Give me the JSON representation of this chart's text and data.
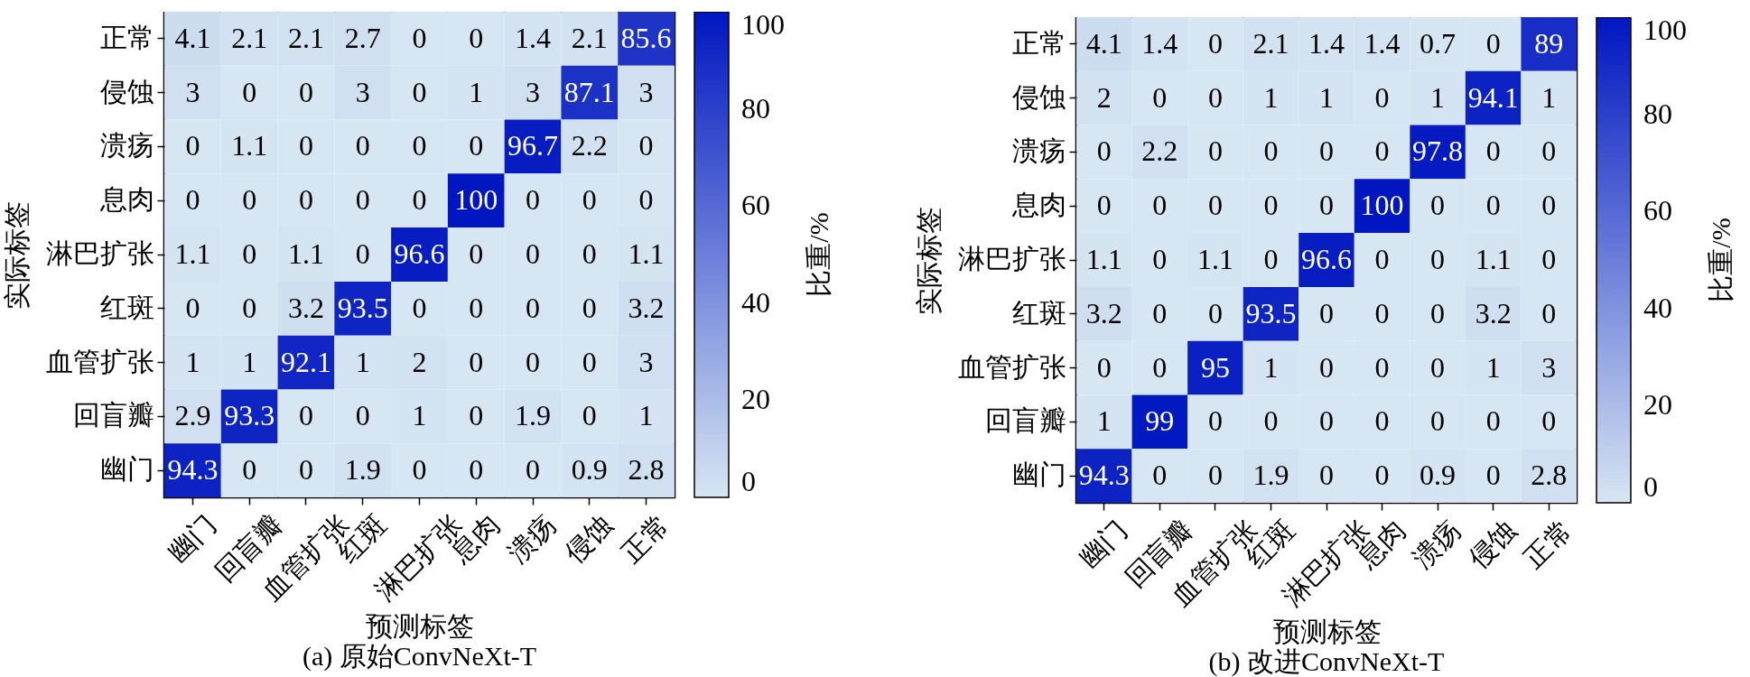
{
  "chart_data": [
    {
      "type": "heatmap",
      "title": "(a) 原始ConvNeXt-T",
      "xlabel": "预测标签",
      "ylabel": "实际标签",
      "clabel": "比重/%",
      "categories": [
        "幽门",
        "回盲瓣",
        "血管扩张",
        "红斑",
        "淋巴扩张",
        "息肉",
        "溃疡",
        "侵蚀",
        "正常"
      ],
      "y_categories": [
        "正常",
        "侵蚀",
        "溃疡",
        "息肉",
        "淋巴扩张",
        "红斑",
        "血管扩张",
        "回盲瓣",
        "幽门"
      ],
      "cells": [
        [
          4.1,
          2.1,
          2.1,
          2.7,
          0,
          0,
          1.4,
          2.1,
          85.6
        ],
        [
          3,
          0,
          0,
          3,
          0,
          1,
          3,
          87.1,
          3
        ],
        [
          0,
          1.1,
          0,
          0,
          0,
          0,
          96.7,
          2.2,
          0
        ],
        [
          0,
          0,
          0,
          0,
          0,
          100,
          0,
          0,
          0
        ],
        [
          1.1,
          0,
          1.1,
          0,
          96.6,
          0,
          0,
          0,
          1.1
        ],
        [
          0,
          0,
          3.2,
          93.5,
          0,
          0,
          0,
          0,
          3.2
        ],
        [
          1,
          1,
          92.1,
          1,
          2,
          0,
          0,
          0,
          3
        ],
        [
          2.9,
          93.3,
          0,
          0,
          1,
          0,
          1.9,
          0,
          1
        ],
        [
          94.3,
          0,
          0,
          1.9,
          0,
          0,
          0,
          0.9,
          2.8
        ]
      ],
      "clim": [
        0,
        100
      ],
      "cticks": [
        0,
        20,
        40,
        60,
        80,
        100
      ],
      "data_labels": true
    },
    {
      "type": "heatmap",
      "title": "(b) 改进ConvNeXt-T",
      "xlabel": "预测标签",
      "ylabel": "实际标签",
      "clabel": "比重/%",
      "categories": [
        "幽门",
        "回盲瓣",
        "血管扩张",
        "红斑",
        "淋巴扩张",
        "息肉",
        "溃疡",
        "侵蚀",
        "正常"
      ],
      "y_categories": [
        "正常",
        "侵蚀",
        "溃疡",
        "息肉",
        "淋巴扩张",
        "红斑",
        "血管扩张",
        "回盲瓣",
        "幽门"
      ],
      "cells": [
        [
          4.1,
          1.4,
          0,
          2.1,
          1.4,
          1.4,
          0.7,
          0,
          89
        ],
        [
          2,
          0,
          0,
          1,
          1,
          0,
          1,
          94.1,
          1
        ],
        [
          0,
          2.2,
          0,
          0,
          0,
          0,
          97.8,
          0,
          0
        ],
        [
          0,
          0,
          0,
          0,
          0,
          100,
          0,
          0,
          0
        ],
        [
          1.1,
          0,
          1.1,
          0,
          96.6,
          0,
          0,
          1.1,
          0
        ],
        [
          3.2,
          0,
          0,
          93.5,
          0,
          0,
          0,
          3.2,
          0
        ],
        [
          0,
          0,
          95,
          1,
          0,
          0,
          0,
          1,
          3
        ],
        [
          1,
          99,
          0,
          0,
          0,
          0,
          0,
          0,
          0
        ],
        [
          94.3,
          0,
          0,
          1.9,
          0,
          0,
          0.9,
          0,
          2.8
        ]
      ],
      "clim": [
        0,
        100
      ],
      "cticks": [
        0,
        20,
        40,
        60,
        80,
        100
      ],
      "data_labels": true
    }
  ]
}
